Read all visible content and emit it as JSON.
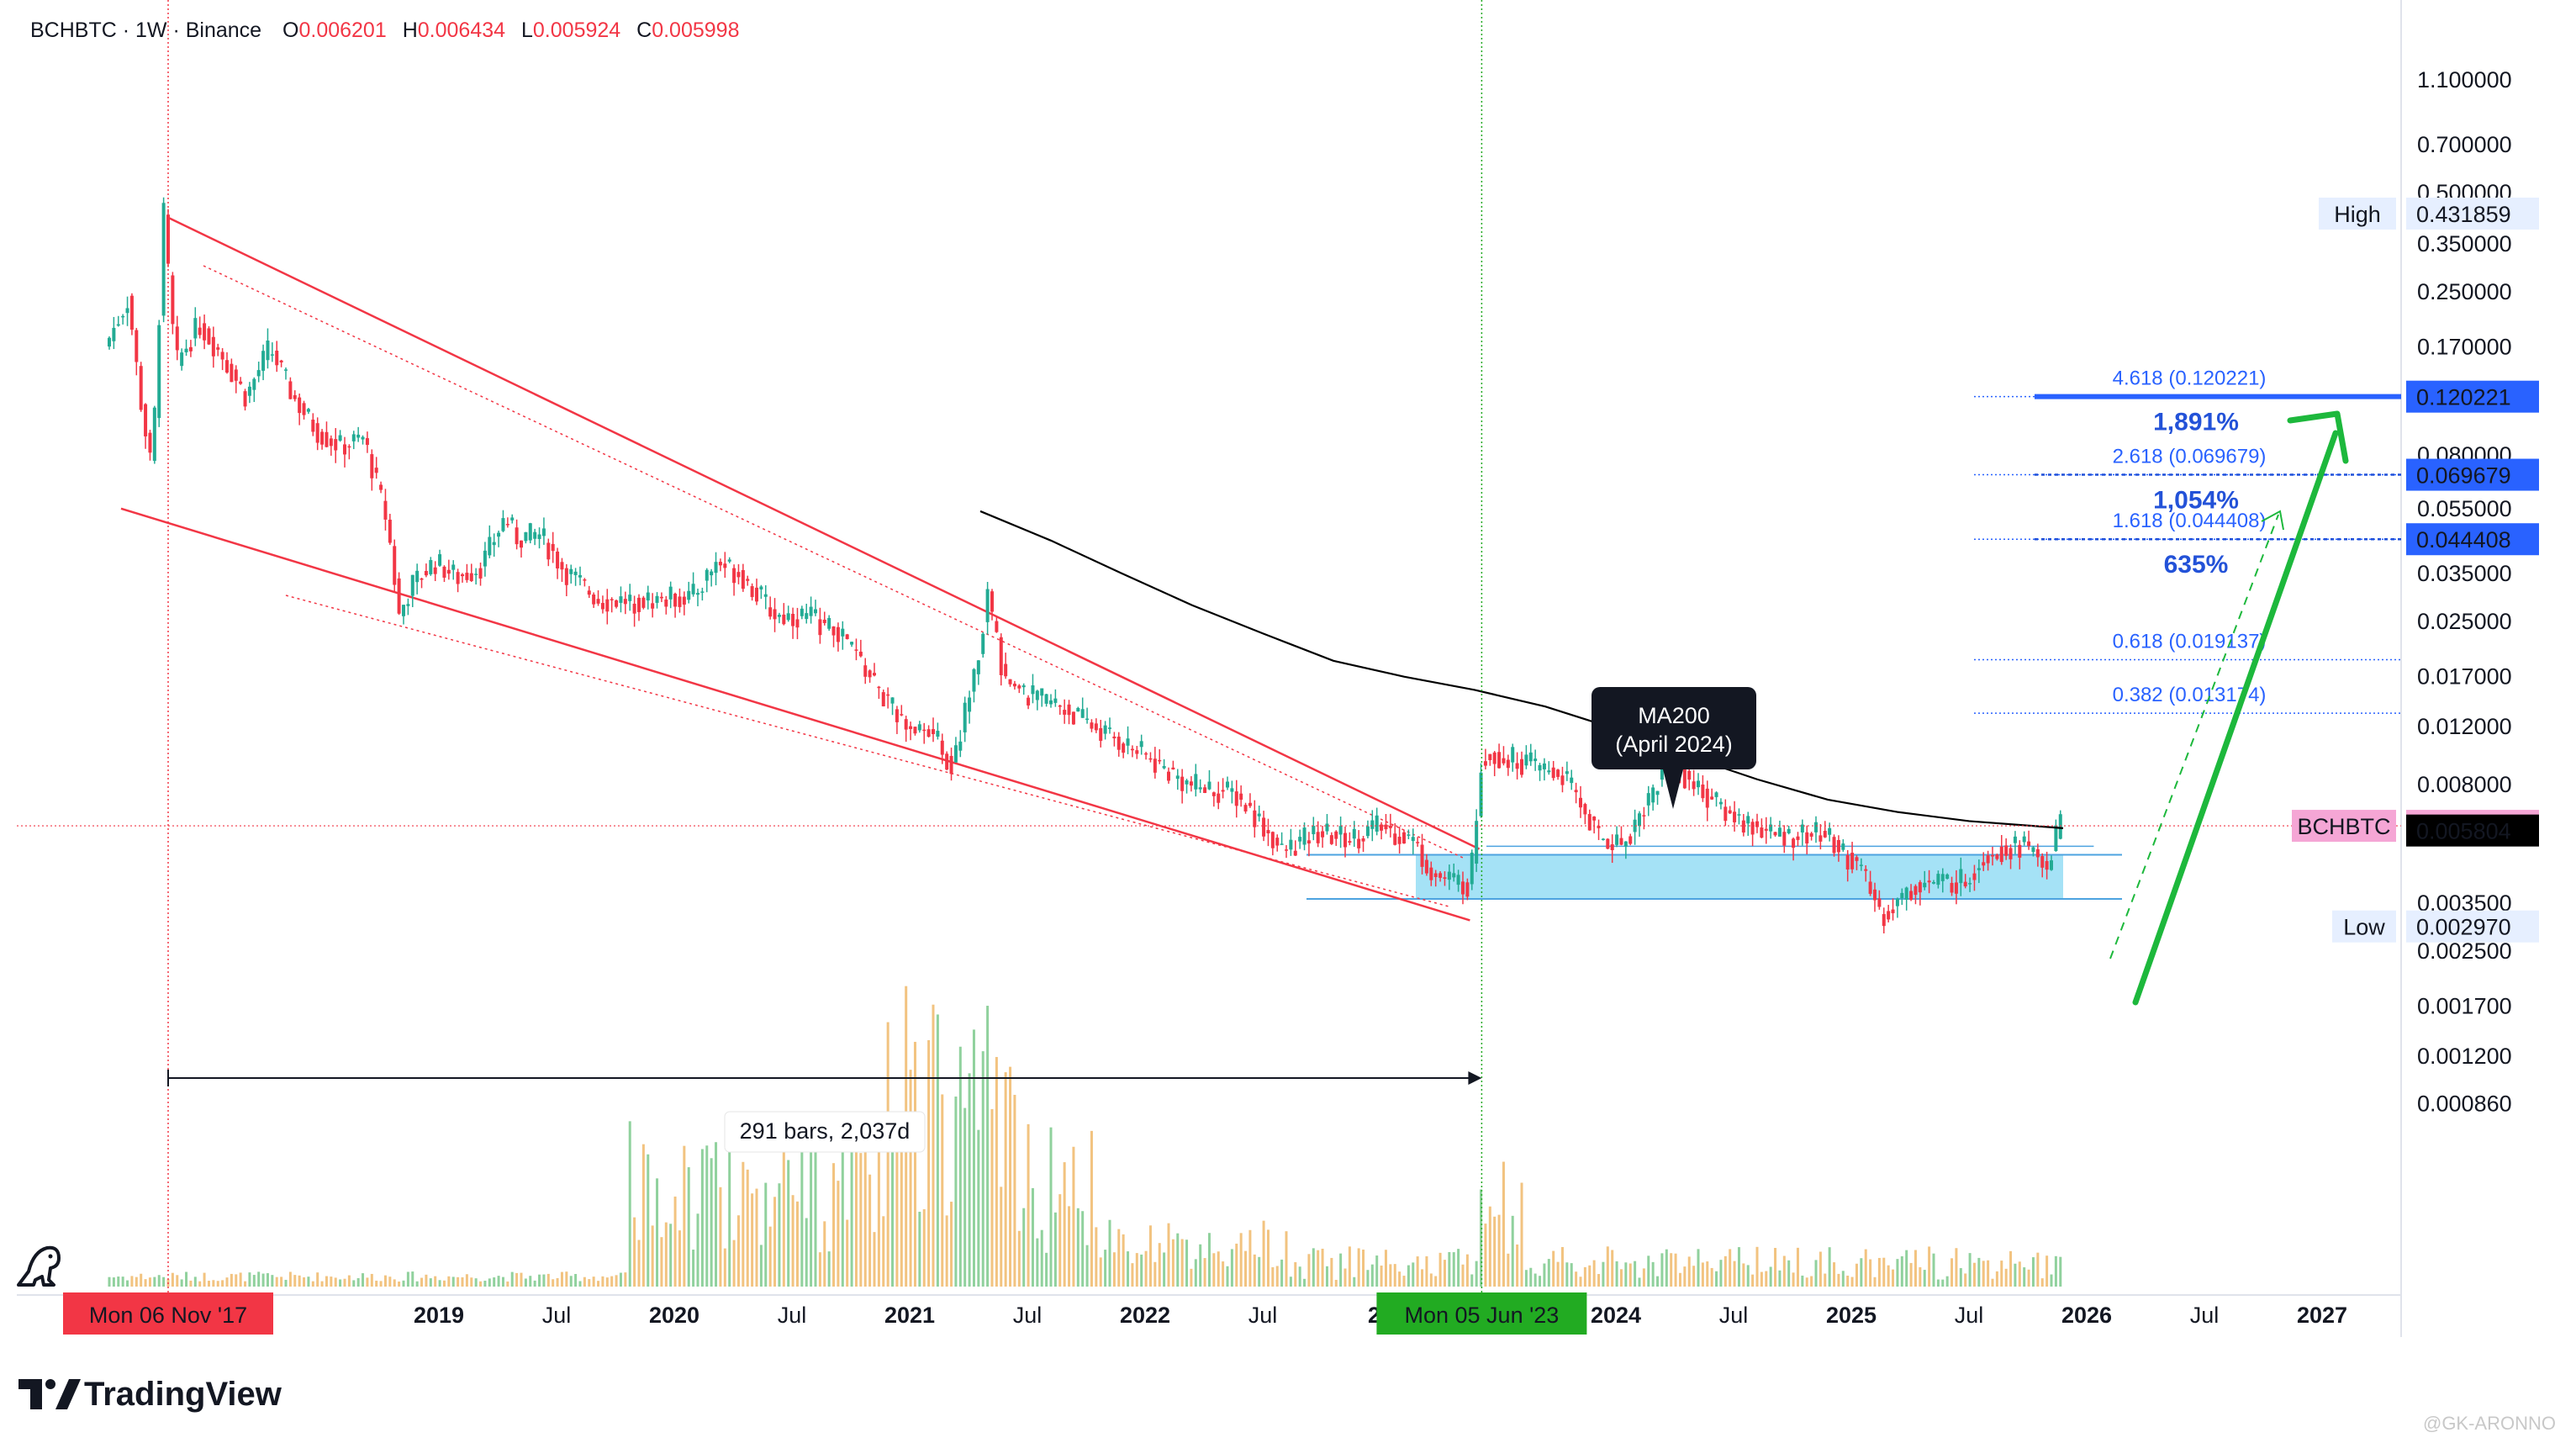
{
  "header": {
    "symbol": "BCHBTC · 1W · Binance",
    "open_label": "O",
    "open": "0.006201",
    "high_label": "H",
    "high": "0.006434",
    "low_label": "L",
    "low": "0.005924",
    "close_label": "C",
    "close": "0.005998"
  },
  "brand": {
    "name": "TradingView",
    "watermark": "@GK-ARONNO"
  },
  "colors": {
    "up": "#22ab94",
    "down": "#f23645",
    "ma": "#000000",
    "fib": "#2962ff",
    "zone": "#7fd6f2",
    "arrow": "#1db83c",
    "wedge": "#f23645"
  },
  "chart_data": {
    "type": "candlestick",
    "scale": "log",
    "interval": "1W",
    "ylim": [
      0.00077,
      1.1
    ],
    "y_ticks": [
      "1.100000",
      "0.700000",
      "0.500000",
      "0.350000",
      "0.250000",
      "0.170000",
      "0.120000",
      "0.080000",
      "0.055000",
      "0.035000",
      "0.025000",
      "0.017000",
      "0.012000",
      "0.008000",
      "0.003500",
      "0.002500",
      "0.001700",
      "0.001200",
      "0.000860"
    ],
    "x_ticks": [
      {
        "label": "2019",
        "year": true,
        "t": 2019.0
      },
      {
        "label": "Jul",
        "year": false,
        "t": 2019.5
      },
      {
        "label": "2020",
        "year": true,
        "t": 2020.0
      },
      {
        "label": "Jul",
        "year": false,
        "t": 2020.5
      },
      {
        "label": "2021",
        "year": true,
        "t": 2021.0
      },
      {
        "label": "Jul",
        "year": false,
        "t": 2021.5
      },
      {
        "label": "2022",
        "year": true,
        "t": 2022.0
      },
      {
        "label": "Jul",
        "year": false,
        "t": 2022.5
      },
      {
        "label": "20",
        "year": true,
        "t": 2023.0
      },
      {
        "label": "2024",
        "year": true,
        "t": 2024.0
      },
      {
        "label": "Jul",
        "year": false,
        "t": 2024.5
      },
      {
        "label": "2025",
        "year": true,
        "t": 2025.0
      },
      {
        "label": "Jul",
        "year": false,
        "t": 2025.5
      },
      {
        "label": "2026",
        "year": true,
        "t": 2026.0
      },
      {
        "label": "Jul",
        "year": false,
        "t": 2026.5
      },
      {
        "label": "2027",
        "year": true,
        "t": 2027.0
      }
    ],
    "price_tags": [
      {
        "name": "High",
        "value": "0.431859",
        "price": 0.431859
      },
      {
        "name": "BCHBTC",
        "value": "0.005998",
        "price": 0.005998
      },
      {
        "name": "",
        "value": "0.005804",
        "price": 0.005804
      },
      {
        "name": "Low",
        "value": "0.002970",
        "price": 0.00297
      }
    ],
    "fib_levels": [
      {
        "label": "4.618 (0.120221)",
        "price": 0.120221,
        "tag": "0.120221",
        "pct": "1,891%"
      },
      {
        "label": "2.618 (0.069679)",
        "price": 0.069679,
        "tag": "0.069679",
        "pct": "1,054%"
      },
      {
        "label": "1.618 (0.044408)",
        "price": 0.044408,
        "tag": "0.044408",
        "pct": "635%"
      },
      {
        "label": "0.618 (0.019137)",
        "price": 0.019137,
        "tag": "",
        "pct": ""
      },
      {
        "label": "0.382 (0.013174)",
        "price": 0.013174,
        "tag": "",
        "pct": ""
      }
    ],
    "ma_label": {
      "line1": "MA200",
      "line2": "(April 2024)"
    },
    "date_markers": [
      {
        "label": "Mon 06 Nov '17",
        "t": 2017.85,
        "color": "#f23645"
      },
      {
        "label": "Mon 05 Jun '23",
        "t": 2023.43,
        "color": "#22ab22"
      }
    ],
    "measure_label": "291 bars, 2,037d",
    "price_path": [
      [
        2017.6,
        0.17
      ],
      [
        2017.7,
        0.24
      ],
      [
        2017.75,
        0.12
      ],
      [
        2017.8,
        0.07
      ],
      [
        2017.85,
        0.43
      ],
      [
        2017.9,
        0.15
      ],
      [
        2018.0,
        0.2
      ],
      [
        2018.1,
        0.16
      ],
      [
        2018.2,
        0.12
      ],
      [
        2018.3,
        0.17
      ],
      [
        2018.4,
        0.12
      ],
      [
        2018.5,
        0.095
      ],
      [
        2018.6,
        0.085
      ],
      [
        2018.7,
        0.09
      ],
      [
        2018.8,
        0.05
      ],
      [
        2018.85,
        0.026
      ],
      [
        2018.9,
        0.032
      ],
      [
        2019.0,
        0.038
      ],
      [
        2019.1,
        0.034
      ],
      [
        2019.2,
        0.037
      ],
      [
        2019.3,
        0.052
      ],
      [
        2019.35,
        0.045
      ],
      [
        2019.45,
        0.046
      ],
      [
        2019.55,
        0.036
      ],
      [
        2019.7,
        0.029
      ],
      [
        2019.9,
        0.029
      ],
      [
        2020.1,
        0.03
      ],
      [
        2020.2,
        0.038
      ],
      [
        2020.3,
        0.035
      ],
      [
        2020.45,
        0.026
      ],
      [
        2020.6,
        0.026
      ],
      [
        2020.75,
        0.022
      ],
      [
        2020.9,
        0.015
      ],
      [
        2021.0,
        0.012
      ],
      [
        2021.1,
        0.012
      ],
      [
        2021.2,
        0.009
      ],
      [
        2021.3,
        0.018
      ],
      [
        2021.35,
        0.03
      ],
      [
        2021.42,
        0.017
      ],
      [
        2021.5,
        0.015
      ],
      [
        2021.65,
        0.014
      ],
      [
        2021.8,
        0.012
      ],
      [
        2022.0,
        0.01
      ],
      [
        2022.2,
        0.008
      ],
      [
        2022.4,
        0.0075
      ],
      [
        2022.5,
        0.0063
      ],
      [
        2022.6,
        0.005
      ],
      [
        2022.75,
        0.0057
      ],
      [
        2022.9,
        0.0055
      ],
      [
        2023.0,
        0.006
      ],
      [
        2023.15,
        0.0055
      ],
      [
        2023.25,
        0.0042
      ],
      [
        2023.4,
        0.004
      ],
      [
        2023.45,
        0.01
      ],
      [
        2023.6,
        0.0095
      ],
      [
        2023.8,
        0.0085
      ],
      [
        2023.95,
        0.0055
      ],
      [
        2024.05,
        0.0053
      ],
      [
        2024.25,
        0.0095
      ],
      [
        2024.35,
        0.008
      ],
      [
        2024.5,
        0.0065
      ],
      [
        2024.7,
        0.0056
      ],
      [
        2024.9,
        0.0057
      ],
      [
        2025.05,
        0.0045
      ],
      [
        2025.15,
        0.0032
      ],
      [
        2025.3,
        0.004
      ],
      [
        2025.5,
        0.0041
      ],
      [
        2025.6,
        0.005
      ],
      [
        2025.75,
        0.0053
      ],
      [
        2025.85,
        0.0045
      ],
      [
        2025.9,
        0.006
      ]
    ],
    "ma200_path": [
      [
        2021.3,
        0.054
      ],
      [
        2021.6,
        0.044
      ],
      [
        2021.9,
        0.035
      ],
      [
        2022.2,
        0.028
      ],
      [
        2022.5,
        0.023
      ],
      [
        2022.8,
        0.019
      ],
      [
        2023.1,
        0.017
      ],
      [
        2023.4,
        0.0155
      ],
      [
        2023.7,
        0.0138
      ],
      [
        2024.0,
        0.0118
      ],
      [
        2024.3,
        0.0098
      ],
      [
        2024.6,
        0.0083
      ],
      [
        2024.9,
        0.0072
      ],
      [
        2025.2,
        0.0066
      ],
      [
        2025.5,
        0.0062
      ],
      [
        2025.9,
        0.0059
      ]
    ],
    "support_zone": {
      "low": 0.0036,
      "high": 0.0049,
      "from": 2023.15,
      "to": 2025.9
    }
  }
}
